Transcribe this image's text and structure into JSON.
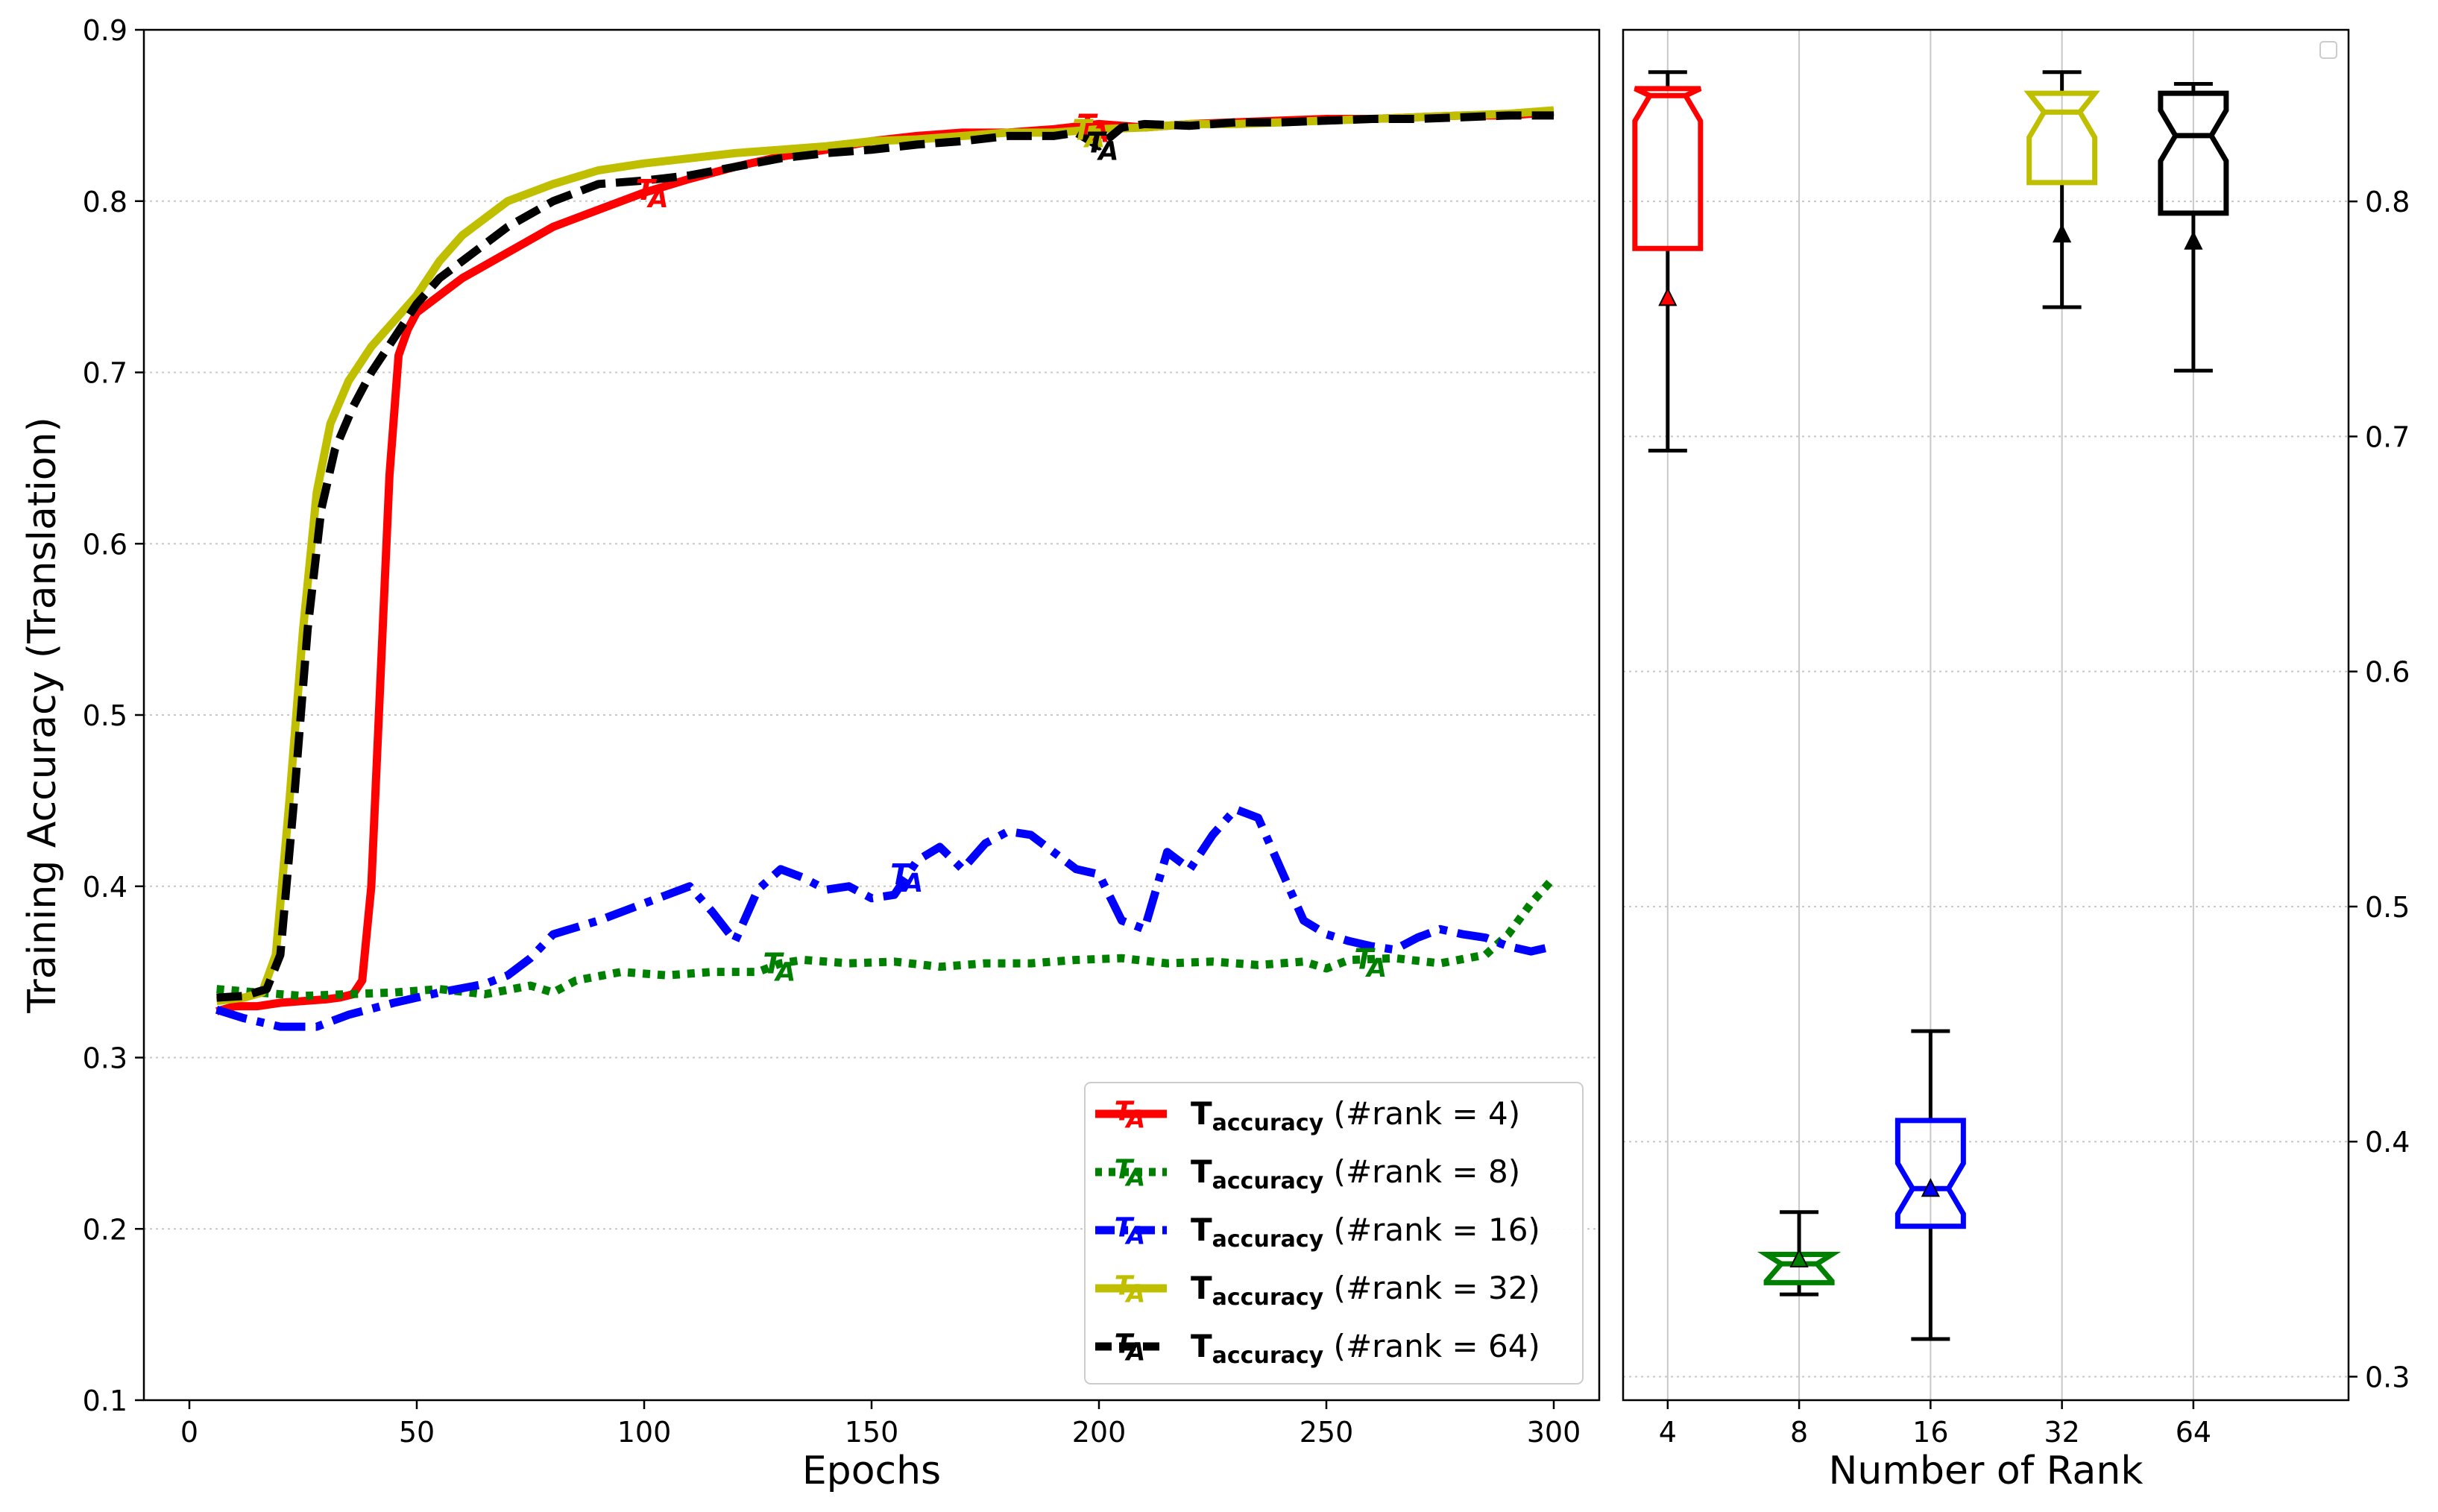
{
  "chart_data": [
    {
      "type": "line",
      "xlabel": "Epochs",
      "ylabel": "Training Accuracy (Translation)",
      "xlim": [
        -10,
        310
      ],
      "ylim": [
        0.1,
        0.9
      ],
      "xticks": [
        0,
        50,
        100,
        150,
        200,
        250,
        300
      ],
      "yticks": [
        0.1,
        0.2,
        0.3,
        0.4,
        0.5,
        0.6,
        0.7,
        0.8,
        0.9
      ],
      "grid": "horizontal-dotted",
      "legend_position": "lower-right",
      "series": [
        {
          "legend_main": "T",
          "legend_sub": "accuracy",
          "legend_rest": " (#rank = 4)",
          "marker": "TA",
          "color": "#ff0000",
          "dash": "solid",
          "x": [
            6,
            10,
            15,
            20,
            25,
            30,
            33,
            36,
            38,
            40,
            42,
            44,
            46,
            48,
            50,
            55,
            60,
            70,
            80,
            90,
            100,
            110,
            120,
            130,
            140,
            150,
            160,
            170,
            180,
            190,
            200,
            210,
            220,
            230,
            240,
            250,
            260,
            270,
            280,
            290,
            300
          ],
          "y": [
            0.327,
            0.33,
            0.33,
            0.332,
            0.333,
            0.334,
            0.335,
            0.337,
            0.345,
            0.4,
            0.52,
            0.64,
            0.71,
            0.725,
            0.735,
            0.745,
            0.755,
            0.77,
            0.785,
            0.795,
            0.805,
            0.813,
            0.82,
            0.826,
            0.83,
            0.835,
            0.838,
            0.84,
            0.84,
            0.842,
            0.845,
            0.843,
            0.845,
            0.846,
            0.847,
            0.848,
            0.848,
            0.849,
            0.85,
            0.85,
            0.852
          ],
          "markers_x": [
            102,
            199
          ]
        },
        {
          "legend_main": "T",
          "legend_sub": "accuracy",
          "legend_rest": " (#rank = 8)",
          "marker": "TA",
          "color": "#008000",
          "dash": "dotted",
          "x": [
            6,
            15,
            25,
            35,
            45,
            55,
            65,
            75,
            80,
            85,
            95,
            105,
            115,
            125,
            130,
            135,
            145,
            155,
            165,
            175,
            185,
            195,
            205,
            215,
            225,
            235,
            245,
            250,
            255,
            265,
            275,
            285,
            290,
            295,
            300
          ],
          "y": [
            0.34,
            0.338,
            0.336,
            0.337,
            0.338,
            0.34,
            0.337,
            0.342,
            0.338,
            0.345,
            0.35,
            0.348,
            0.35,
            0.35,
            0.355,
            0.357,
            0.355,
            0.356,
            0.353,
            0.355,
            0.355,
            0.357,
            0.358,
            0.355,
            0.356,
            0.354,
            0.356,
            0.352,
            0.357,
            0.358,
            0.355,
            0.36,
            0.372,
            0.39,
            0.405
          ],
          "markers_x": [
            130,
            260
          ]
        },
        {
          "legend_main": "T",
          "legend_sub": "accuracy",
          "legend_rest": " (#rank = 16)",
          "marker": "TA",
          "color": "#0000ff",
          "dash": "dashdot",
          "x": [
            6,
            12,
            20,
            28,
            35,
            45,
            55,
            65,
            70,
            75,
            80,
            90,
            100,
            110,
            115,
            120,
            125,
            130,
            135,
            140,
            145,
            150,
            155,
            160,
            165,
            170,
            175,
            180,
            185,
            190,
            195,
            200,
            205,
            210,
            215,
            220,
            225,
            230,
            235,
            240,
            245,
            250,
            255,
            260,
            265,
            270,
            275,
            280,
            285,
            290,
            295,
            300
          ],
          "y": [
            0.328,
            0.323,
            0.318,
            0.318,
            0.325,
            0.332,
            0.338,
            0.343,
            0.348,
            0.358,
            0.372,
            0.38,
            0.39,
            0.4,
            0.385,
            0.368,
            0.398,
            0.41,
            0.405,
            0.398,
            0.4,
            0.393,
            0.395,
            0.415,
            0.423,
            0.41,
            0.425,
            0.432,
            0.43,
            0.42,
            0.41,
            0.407,
            0.38,
            0.375,
            0.42,
            0.41,
            0.43,
            0.445,
            0.44,
            0.41,
            0.38,
            0.372,
            0.368,
            0.365,
            0.363,
            0.37,
            0.375,
            0.372,
            0.37,
            0.365,
            0.362,
            0.365
          ],
          "markers_x": [
            158
          ]
        },
        {
          "legend_main": "T",
          "legend_sub": "accuracy",
          "legend_rest": " (#rank = 32)",
          "marker": "TA",
          "color": "#bfbf00",
          "dash": "solid",
          "x": [
            6,
            12,
            16,
            19,
            22,
            25,
            28,
            31,
            35,
            40,
            45,
            50,
            55,
            60,
            70,
            80,
            90,
            100,
            110,
            120,
            130,
            140,
            150,
            160,
            170,
            180,
            190,
            200,
            210,
            220,
            230,
            240,
            250,
            260,
            270,
            280,
            290,
            300
          ],
          "y": [
            0.333,
            0.335,
            0.338,
            0.36,
            0.45,
            0.55,
            0.63,
            0.67,
            0.695,
            0.715,
            0.73,
            0.745,
            0.765,
            0.78,
            0.8,
            0.81,
            0.818,
            0.822,
            0.825,
            0.828,
            0.83,
            0.832,
            0.835,
            0.836,
            0.838,
            0.84,
            0.84,
            0.842,
            0.843,
            0.845,
            0.845,
            0.846,
            0.847,
            0.848,
            0.849,
            0.85,
            0.851,
            0.853
          ],
          "markers_x": [
            198
          ]
        },
        {
          "legend_main": "T",
          "legend_sub": "accuracy",
          "legend_rest": " (#rank = 64)",
          "marker": "TA",
          "color": "#000000",
          "dash": "dashed",
          "x": [
            6,
            12,
            17,
            20,
            23,
            26,
            29,
            32,
            36,
            40,
            45,
            50,
            55,
            60,
            70,
            80,
            90,
            100,
            110,
            120,
            130,
            140,
            150,
            160,
            170,
            180,
            190,
            195,
            200,
            205,
            210,
            220,
            230,
            240,
            250,
            260,
            270,
            280,
            290,
            300
          ],
          "y": [
            0.335,
            0.336,
            0.34,
            0.36,
            0.45,
            0.55,
            0.62,
            0.655,
            0.68,
            0.7,
            0.72,
            0.74,
            0.755,
            0.765,
            0.785,
            0.8,
            0.81,
            0.812,
            0.815,
            0.82,
            0.825,
            0.828,
            0.83,
            0.833,
            0.835,
            0.838,
            0.838,
            0.84,
            0.832,
            0.843,
            0.845,
            0.844,
            0.846,
            0.846,
            0.847,
            0.848,
            0.848,
            0.849,
            0.85,
            0.85
          ],
          "markers_x": [
            201
          ]
        }
      ]
    },
    {
      "type": "box",
      "xlabel": "Number of Rank",
      "categories": [
        "4",
        "8",
        "16",
        "32",
        "64"
      ],
      "ylim": [
        0.29,
        0.873
      ],
      "yticks": [
        0.3,
        0.4,
        0.5,
        0.6,
        0.7,
        0.8
      ],
      "grid": "both-solid",
      "y_axis_side": "right",
      "notched": true,
      "boxes": [
        {
          "category": "4",
          "color": "#ff0000",
          "whisker_low": 0.694,
          "q1": 0.78,
          "median": 0.845,
          "q3": 0.848,
          "whisker_high": 0.855,
          "mean": 0.759,
          "mean_color": "#ff0000"
        },
        {
          "category": "8",
          "color": "#008000",
          "whisker_low": 0.335,
          "q1": 0.34,
          "median": 0.348,
          "q3": 0.352,
          "whisker_high": 0.37,
          "mean": 0.35,
          "mean_color": "#008000"
        },
        {
          "category": "16",
          "color": "#0000ff",
          "whisker_low": 0.316,
          "q1": 0.364,
          "median": 0.38,
          "q3": 0.409,
          "whisker_high": 0.447,
          "mean": 0.38,
          "mean_color": "#0000ff"
        },
        {
          "category": "32",
          "color": "#bfbf00",
          "whisker_low": 0.755,
          "q1": 0.808,
          "median": 0.838,
          "q3": 0.846,
          "whisker_high": 0.855,
          "mean": 0.786,
          "mean_color": "#000000"
        },
        {
          "category": "64",
          "color": "#000000",
          "whisker_low": 0.728,
          "q1": 0.795,
          "median": 0.828,
          "q3": 0.846,
          "whisker_high": 0.85,
          "mean": 0.783,
          "mean_color": "#000000"
        }
      ]
    }
  ]
}
